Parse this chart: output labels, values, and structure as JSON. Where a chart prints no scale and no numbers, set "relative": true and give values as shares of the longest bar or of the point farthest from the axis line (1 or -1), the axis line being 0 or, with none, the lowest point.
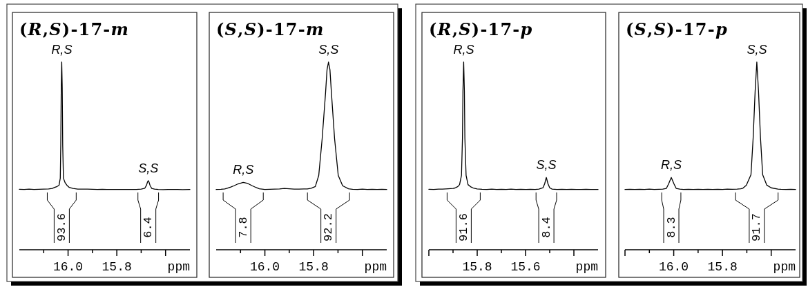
{
  "chart_data": [
    {
      "type": "line",
      "title": "(R,S)-17-m",
      "xlabel": "ppm",
      "relative": true,
      "color": "#000000",
      "xlim": [
        16.2,
        15.5
      ],
      "xticks": [
        {
          "value": 16.1,
          "label": null
        },
        {
          "value": 16,
          "label": "16.0"
        },
        {
          "value": 15.9,
          "label": null
        },
        {
          "value": 15.8,
          "label": "15.8"
        },
        {
          "value": 15.7,
          "label": null
        },
        {
          "value": 15.6,
          "label": null
        }
      ],
      "x": [
        16.2,
        16.18,
        16.16,
        16.14,
        16.12,
        16.1,
        16.08,
        16.065,
        16.055,
        16.045,
        16.037,
        16.032,
        16.03,
        16.028,
        16.026,
        16.024,
        16.022,
        16.019,
        16.012,
        16.005,
        15.995,
        15.98,
        15.96,
        15.94,
        15.92,
        15.9,
        15.88,
        15.86,
        15.84,
        15.82,
        15.8,
        15.78,
        15.76,
        15.74,
        15.72,
        15.7,
        15.685,
        15.678,
        15.674,
        15.671,
        15.668,
        15.664,
        15.657,
        15.645,
        15.63,
        15.61,
        15.59,
        15.57,
        15.55,
        15.53,
        15.5
      ],
      "values": [
        0.322,
        0.321,
        0.323,
        0.321,
        0.322,
        0.323,
        0.324,
        0.327,
        0.332,
        0.337,
        0.344,
        0.381,
        0.558,
        0.864,
        1,
        0.864,
        0.558,
        0.381,
        0.357,
        0.344,
        0.332,
        0.327,
        0.323,
        0.323,
        0.323,
        0.322,
        0.321,
        0.322,
        0.321,
        0.321,
        0.321,
        0.321,
        0.321,
        0.321,
        0.321,
        0.323,
        0.328,
        0.344,
        0.361,
        0.368,
        0.361,
        0.344,
        0.327,
        0.323,
        0.321,
        0.32,
        0.321,
        0.321,
        0.321,
        0.32,
        0.321
      ],
      "annotations": [
        {
          "text": "R,S",
          "x": 16.026,
          "y": 1
        },
        {
          "text": "S,S",
          "x": 15.671,
          "y": 0.368
        },
        "93.6",
        "6.4"
      ]
    },
    {
      "type": "line",
      "title": "(S,S)-17-m",
      "xlabel": "ppm",
      "relative": true,
      "color": "#000000",
      "xlim": [
        16.2,
        15.5
      ],
      "xticks": [
        {
          "value": 16.1,
          "label": null
        },
        {
          "value": 16,
          "label": "16.0"
        },
        {
          "value": 15.9,
          "label": null
        },
        {
          "value": 15.8,
          "label": "15.8"
        },
        {
          "value": 15.7,
          "label": null
        },
        {
          "value": 15.6,
          "label": null
        }
      ],
      "x": [
        16.2,
        16.18,
        16.165,
        16.155,
        16.14,
        16.127,
        16.11,
        16.089,
        16.07,
        16.052,
        16.035,
        16.023,
        16.0,
        15.98,
        15.96,
        15.94,
        15.92,
        15.9,
        15.88,
        15.86,
        15.84,
        15.826,
        15.81,
        15.793,
        15.779,
        15.765,
        15.751,
        15.745,
        15.739,
        15.733,
        15.727,
        15.714,
        15.699,
        15.681,
        15.657,
        15.64,
        15.62,
        15.6,
        15.58,
        15.56,
        15.54,
        15.52,
        15.5
      ],
      "values": [
        0.321,
        0.322,
        0.324,
        0.328,
        0.334,
        0.341,
        0.351,
        0.359,
        0.353,
        0.341,
        0.331,
        0.325,
        0.321,
        0.322,
        0.323,
        0.324,
        0.327,
        0.325,
        0.323,
        0.323,
        0.324,
        0.324,
        0.328,
        0.337,
        0.396,
        0.592,
        0.837,
        0.959,
        1,
        0.959,
        0.837,
        0.592,
        0.396,
        0.341,
        0.325,
        0.322,
        0.321,
        0.323,
        0.321,
        0.322,
        0.321,
        0.322,
        0.321
      ],
      "annotations": [
        {
          "text": "R,S",
          "x": 16.089,
          "y": 0.359
        },
        {
          "text": "S,S",
          "x": 15.739,
          "y": 1
        },
        "7.8",
        "92.2"
      ]
    },
    {
      "type": "line",
      "title": "(R,S)-17-p",
      "xlabel": "ppm",
      "relative": true,
      "color": "#000000",
      "xlim": [
        16,
        15.3
      ],
      "xticks": [
        {
          "value": 16,
          "label": null
        },
        {
          "value": 15.9,
          "label": null
        },
        {
          "value": 15.8,
          "label": "15.8"
        },
        {
          "value": 15.7,
          "label": null
        },
        {
          "value": 15.6,
          "label": "15.6"
        },
        {
          "value": 15.5,
          "label": null
        },
        {
          "value": 15.4,
          "label": null
        }
      ],
      "x": [
        16.0,
        15.98,
        15.96,
        15.944,
        15.92,
        15.9,
        15.892,
        15.88,
        15.873,
        15.865,
        15.861,
        15.859,
        15.856,
        15.853,
        15.851,
        15.846,
        15.838,
        15.825,
        15.816,
        15.8,
        15.78,
        15.76,
        15.74,
        15.72,
        15.7,
        15.68,
        15.66,
        15.64,
        15.62,
        15.6,
        15.58,
        15.56,
        15.545,
        15.528,
        15.521,
        15.514,
        15.507,
        15.5,
        15.49,
        15.47,
        15.45,
        15.43,
        15.41,
        15.39,
        15.37,
        15.35,
        15.33,
        15.3
      ],
      "values": [
        0.322,
        0.321,
        0.323,
        0.323,
        0.325,
        0.327,
        0.329,
        0.337,
        0.347,
        0.397,
        0.595,
        0.844,
        1,
        0.844,
        0.595,
        0.397,
        0.347,
        0.334,
        0.329,
        0.324,
        0.322,
        0.321,
        0.323,
        0.321,
        0.322,
        0.321,
        0.323,
        0.321,
        0.322,
        0.321,
        0.322,
        0.321,
        0.323,
        0.33,
        0.351,
        0.385,
        0.351,
        0.33,
        0.323,
        0.321,
        0.322,
        0.321,
        0.322,
        0.321,
        0.321,
        0.322,
        0.321,
        0.321
      ],
      "annotations": [
        {
          "text": "R,S",
          "x": 15.856,
          "y": 1
        },
        {
          "text": "S,S",
          "x": 15.514,
          "y": 0.385
        },
        "91.6",
        "8.4"
      ]
    },
    {
      "type": "line",
      "title": "(S,S)-17-p",
      "xlabel": "ppm",
      "relative": true,
      "color": "#000000",
      "xlim": [
        16.2,
        15.5
      ],
      "xticks": [
        {
          "value": 16.2,
          "label": null
        },
        {
          "value": 16.1,
          "label": null
        },
        {
          "value": 16,
          "label": "16.0"
        },
        {
          "value": 15.9,
          "label": null
        },
        {
          "value": 15.8,
          "label": "15.8"
        },
        {
          "value": 15.7,
          "label": null
        },
        {
          "value": 15.6,
          "label": null
        }
      ],
      "x": [
        16.2,
        16.18,
        16.16,
        16.14,
        16.12,
        16.1,
        16.08,
        16.06,
        16.045,
        16.03,
        16.021,
        16.01,
        15.999,
        15.99,
        15.975,
        15.96,
        15.94,
        15.92,
        15.9,
        15.88,
        15.86,
        15.84,
        15.82,
        15.8,
        15.78,
        15.76,
        15.74,
        15.725,
        15.716,
        15.702,
        15.683,
        15.674,
        15.666,
        15.659,
        15.652,
        15.644,
        15.635,
        15.618,
        15.6,
        15.572,
        15.56,
        15.54,
        15.52,
        15.5
      ],
      "values": [
        0.321,
        0.322,
        0.321,
        0.322,
        0.321,
        0.323,
        0.321,
        0.322,
        0.323,
        0.327,
        0.351,
        0.385,
        0.351,
        0.327,
        0.323,
        0.321,
        0.322,
        0.321,
        0.322,
        0.321,
        0.322,
        0.321,
        0.322,
        0.321,
        0.323,
        0.322,
        0.323,
        0.325,
        0.328,
        0.344,
        0.4,
        0.597,
        0.843,
        1,
        0.843,
        0.597,
        0.4,
        0.344,
        0.33,
        0.323,
        0.322,
        0.321,
        0.322,
        0.321
      ],
      "annotations": [
        {
          "text": "R,S",
          "x": 16.01,
          "y": 0.385
        },
        {
          "text": "S,S",
          "x": 15.659,
          "y": 1
        },
        "8.3",
        "91.7"
      ]
    }
  ]
}
